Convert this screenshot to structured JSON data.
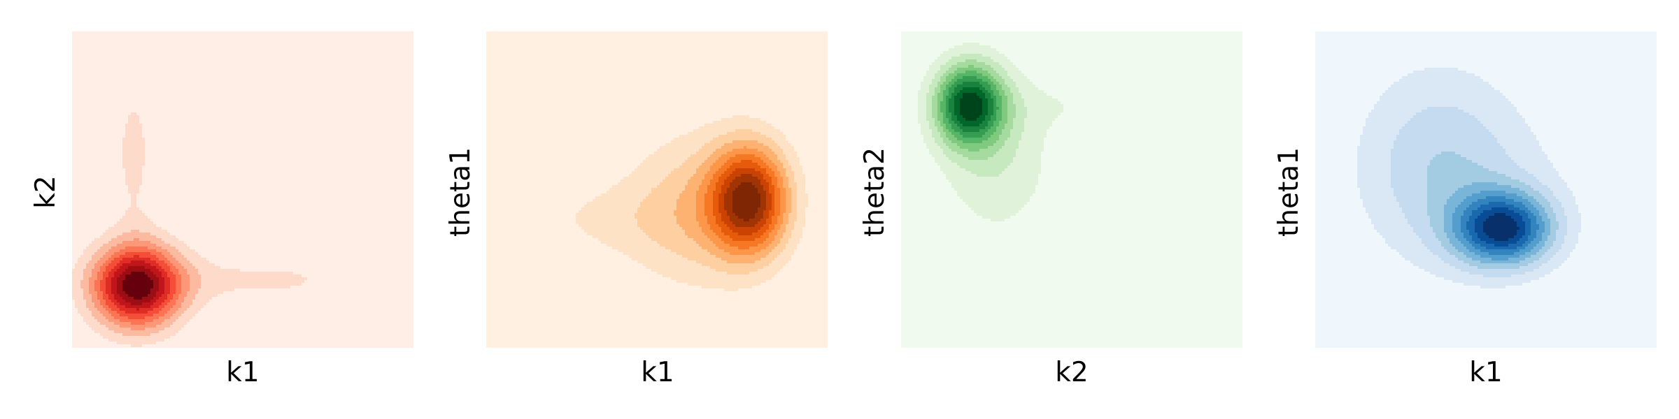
{
  "chart_data": [
    {
      "type": "contour",
      "colormap": "Reds",
      "xlabel": "k1",
      "ylabel": "k2",
      "xticks": [],
      "yticks": [],
      "grid": false,
      "levels": 10,
      "peaks": [
        {
          "x": 0.19,
          "y": 0.2,
          "sx": 0.09,
          "sy": 0.09,
          "w": 1.0
        },
        {
          "x": 0.18,
          "y": 0.62,
          "sx": 0.05,
          "sy": 0.2,
          "w": 0.14
        },
        {
          "x": 0.55,
          "y": 0.22,
          "sx": 0.28,
          "sy": 0.06,
          "w": 0.13
        }
      ]
    },
    {
      "type": "contour",
      "colormap": "Oranges",
      "xlabel": "k1",
      "ylabel": "theta1",
      "xticks": [],
      "yticks": [],
      "grid": false,
      "levels": 10,
      "peaks": [
        {
          "x": 0.77,
          "y": 0.47,
          "sx": 0.08,
          "sy": 0.12,
          "w": 1.0
        },
        {
          "x": 0.61,
          "y": 0.44,
          "sx": 0.14,
          "sy": 0.17,
          "w": 0.3
        },
        {
          "x": 0.33,
          "y": 0.41,
          "sx": 0.18,
          "sy": 0.09,
          "w": 0.12
        }
      ]
    },
    {
      "type": "contour",
      "colormap": "Greens",
      "xlabel": "k2",
      "ylabel": "theta2",
      "xticks": [],
      "yticks": [],
      "grid": false,
      "levels": 10,
      "peaks": [
        {
          "x": 0.2,
          "y": 0.77,
          "sx": 0.07,
          "sy": 0.09,
          "w": 1.0
        },
        {
          "x": 0.28,
          "y": 0.6,
          "sx": 0.12,
          "sy": 0.18,
          "w": 0.22
        },
        {
          "x": 0.62,
          "y": 0.77,
          "sx": 0.25,
          "sy": 0.06,
          "w": 0.1
        }
      ]
    },
    {
      "type": "contour",
      "colormap": "Blues",
      "xlabel": "k1",
      "ylabel": "theta1",
      "xticks": [],
      "yticks": [],
      "grid": false,
      "levels": 10,
      "peaks": [
        {
          "x": 0.55,
          "y": 0.38,
          "sx": 0.1,
          "sy": 0.08,
          "w": 1.0
        },
        {
          "x": 0.36,
          "y": 0.6,
          "sx": 0.17,
          "sy": 0.22,
          "w": 0.28
        },
        {
          "x": 0.5,
          "y": 0.5,
          "sx": 0.22,
          "sy": 0.18,
          "w": 0.12
        }
      ]
    }
  ]
}
